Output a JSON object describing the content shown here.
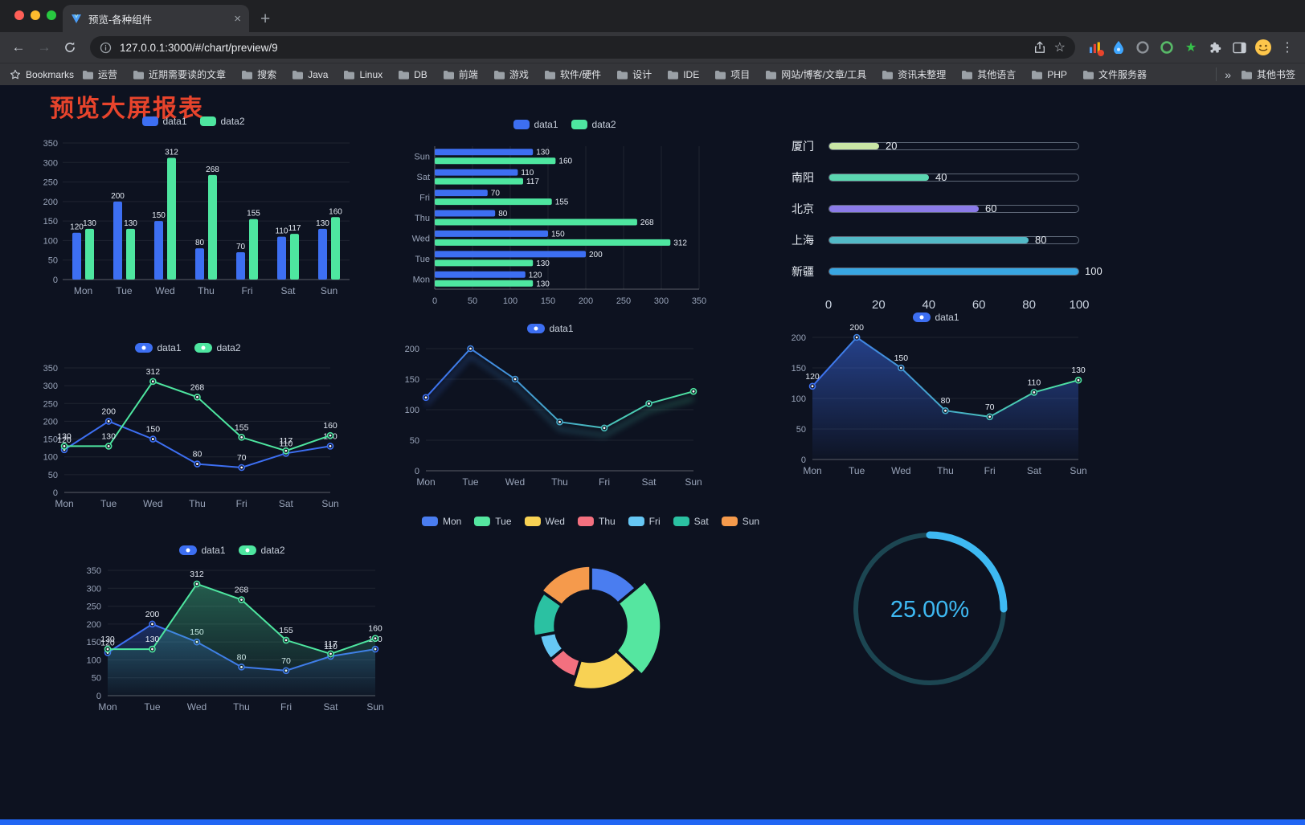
{
  "browser": {
    "tab_title": "预览-各种组件",
    "url": "127.0.0.1:3000/#/chart/preview/9"
  },
  "icons": {
    "close": "×",
    "new_tab": "+",
    "menu": "⋮",
    "star_outline": "☆",
    "green_star": "★",
    "back": "←",
    "forward": "→"
  },
  "bookmarks_bar": {
    "manager_label": "Bookmarks",
    "items": [
      "运营",
      "近期需要读的文章",
      "搜索",
      "Java",
      "Linux",
      "DB",
      "前端",
      "游戏",
      "软件/硬件",
      "设计",
      "IDE",
      "项目",
      "网站/博客/文章/工具",
      "资讯未整理",
      "其他语言",
      "PHP",
      "文件服务器"
    ],
    "overflow": "»",
    "other_bookmarks": "其他书签"
  },
  "page": {
    "title": "预览大屏报表",
    "title_color": "#E8442C",
    "background": "#0D1220",
    "bottom_bar_color": "#2166F3"
  },
  "palette": {
    "data1": "#3D6FF2",
    "data2": "#4EE6A0",
    "axis": "rgba(255,255,255,0.32)",
    "grid": "rgba(255,255,255,0.08)",
    "tick": "#98A3B8",
    "label": "#E3E9F2",
    "bg": "#0D1220"
  },
  "chart_data": [
    {
      "id": "bar-grouped",
      "type": "bar",
      "categories": [
        "Mon",
        "Tue",
        "Wed",
        "Thu",
        "Fri",
        "Sat",
        "Sun"
      ],
      "series": [
        {
          "name": "data1",
          "color": "#3D6FF2",
          "values": [
            120,
            200,
            150,
            80,
            70,
            110,
            130
          ]
        },
        {
          "name": "data2",
          "color": "#4EE6A0",
          "values": [
            130,
            130,
            312,
            268,
            155,
            117,
            160
          ]
        }
      ],
      "ylim": [
        0,
        350
      ],
      "ystep": 50,
      "value_labels": true,
      "legend_position": "top"
    },
    {
      "id": "bar-horizontal",
      "type": "hbar",
      "categories": [
        "Mon",
        "Tue",
        "Wed",
        "Thu",
        "Fri",
        "Sat",
        "Sun"
      ],
      "series": [
        {
          "name": "data1",
          "color": "#3D6FF2",
          "values": [
            120,
            200,
            150,
            80,
            70,
            110,
            130
          ]
        },
        {
          "name": "data2",
          "color": "#4EE6A0",
          "values": [
            130,
            130,
            312,
            268,
            155,
            117,
            160
          ]
        }
      ],
      "xlim": [
        0,
        350
      ],
      "xstep": 50,
      "value_labels": true,
      "legend_position": "top"
    },
    {
      "id": "progress-list",
      "type": "progress",
      "max": 100,
      "items": [
        {
          "label": "厦门",
          "value": 20,
          "color": "#C9E6A6"
        },
        {
          "label": "南阳",
          "value": 40,
          "color": "#5BD6B0"
        },
        {
          "label": "北京",
          "value": 60,
          "color": "#8B7BE8"
        },
        {
          "label": "上海",
          "value": 80,
          "color": "#52B9C6"
        },
        {
          "label": "新疆",
          "value": 100,
          "color": "#38A6E2"
        }
      ],
      "axis_ticks": [
        0,
        20,
        40,
        60,
        80,
        100
      ]
    },
    {
      "id": "line-grouped",
      "type": "line",
      "categories": [
        "Mon",
        "Tue",
        "Wed",
        "Thu",
        "Fri",
        "Sat",
        "Sun"
      ],
      "series": [
        {
          "name": "data1",
          "color": "#3D6FF2",
          "values": [
            120,
            200,
            150,
            80,
            70,
            110,
            130
          ]
        },
        {
          "name": "data2",
          "color": "#4EE6A0",
          "values": [
            130,
            130,
            312,
            268,
            155,
            117,
            160
          ]
        }
      ],
      "ylim": [
        0,
        350
      ],
      "ystep": 50,
      "value_labels": true
    },
    {
      "id": "line-gradient",
      "type": "line",
      "glow": true,
      "categories": [
        "Mon",
        "Tue",
        "Wed",
        "Thu",
        "Fri",
        "Sat",
        "Sun"
      ],
      "series": [
        {
          "name": "data1",
          "gradient": [
            "#3D6FF2",
            "#4EE6A0"
          ],
          "values": [
            120,
            200,
            150,
            80,
            70,
            110,
            130
          ]
        }
      ],
      "ylim": [
        0,
        200
      ],
      "ystep": 50,
      "value_labels": false
    },
    {
      "id": "line-area",
      "type": "line",
      "categories": [
        "Mon",
        "Tue",
        "Wed",
        "Thu",
        "Fri",
        "Sat",
        "Sun"
      ],
      "series": [
        {
          "name": "data1",
          "gradient": [
            "#3D6FF2",
            "#4EE6A0"
          ],
          "area": [
            "rgba(61,111,242,0.50)",
            "rgba(61,111,242,0.02)"
          ],
          "values": [
            120,
            200,
            150,
            80,
            70,
            110,
            130
          ]
        }
      ],
      "ylim": [
        0,
        200
      ],
      "ystep": 50,
      "value_labels": true
    },
    {
      "id": "line-area-two",
      "type": "line",
      "categories": [
        "Mon",
        "Tue",
        "Wed",
        "Thu",
        "Fri",
        "Sat",
        "Sun"
      ],
      "series": [
        {
          "name": "data1",
          "color": "#3D6FF2",
          "area": [
            "rgba(61,111,242,0.30)",
            "rgba(61,111,242,0.02)"
          ],
          "values": [
            120,
            200,
            150,
            80,
            70,
            110,
            130
          ]
        },
        {
          "name": "data2",
          "color": "#4EE6A0",
          "area": [
            "rgba(78,230,160,0.35)",
            "rgba(78,230,160,0.02)"
          ],
          "values": [
            130,
            130,
            312,
            268,
            155,
            117,
            160
          ]
        }
      ],
      "ylim": [
        0,
        350
      ],
      "ystep": 50,
      "value_labels": true
    },
    {
      "id": "rose-pie",
      "type": "pie",
      "items": [
        {
          "label": "Mon",
          "value": 120,
          "color": "#4A7DF0"
        },
        {
          "label": "Tue",
          "value": 200,
          "color": "#55E6A0"
        },
        {
          "label": "Wed",
          "value": 150,
          "color": "#F8D254"
        },
        {
          "label": "Thu",
          "value": 80,
          "color": "#F3707F"
        },
        {
          "label": "Fri",
          "value": 70,
          "color": "#66C7F4"
        },
        {
          "label": "Sat",
          "value": 110,
          "color": "#2BC1A2"
        },
        {
          "label": "Sun",
          "value": 130,
          "color": "#F59A4C"
        }
      ]
    },
    {
      "id": "gauge",
      "type": "gauge",
      "value": 25,
      "display": "25.00%",
      "color": "#3EB9F2",
      "track_color": "#1C4652"
    }
  ]
}
